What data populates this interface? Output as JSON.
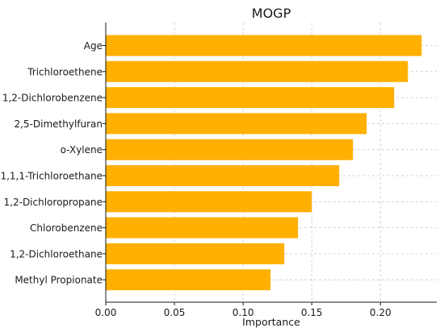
{
  "chart_data": {
    "type": "bar",
    "orientation": "horizontal",
    "title": "MOGP",
    "xlabel": "Importance",
    "ylabel": "",
    "categories": [
      "Age",
      "Trichloroethene",
      "1,2-Dichlorobenzene",
      "2,5-Dimethylfuran",
      "o-Xylene",
      "1,1,1-Trichloroethane",
      "1,2-Dichloropropane",
      "Chlorobenzene",
      "1,2-Dichloroethane",
      "Methyl Propionate"
    ],
    "values": [
      0.23,
      0.22,
      0.21,
      0.19,
      0.18,
      0.17,
      0.15,
      0.14,
      0.13,
      0.12
    ],
    "xlim": [
      0,
      0.241
    ],
    "xticks": [
      "0.00",
      "0.05",
      "0.10",
      "0.15",
      "0.20"
    ],
    "grid": true,
    "bar_color": "#FFB000"
  }
}
